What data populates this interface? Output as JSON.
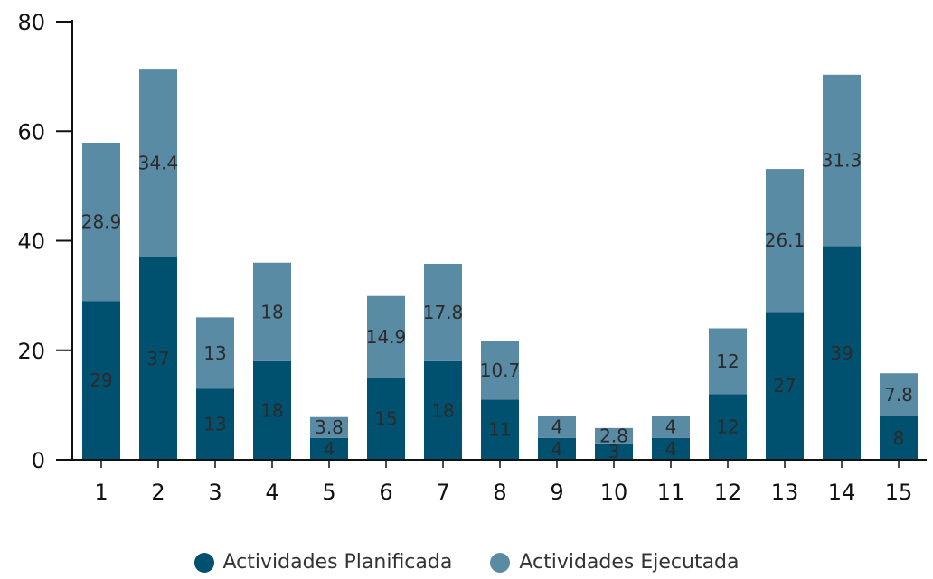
{
  "chart_data": {
    "type": "bar",
    "stacked": true,
    "categories": [
      "1",
      "2",
      "3",
      "4",
      "5",
      "6",
      "7",
      "8",
      "9",
      "10",
      "11",
      "12",
      "13",
      "14",
      "15"
    ],
    "series": [
      {
        "name": "Actividades Planificada",
        "color": "#00506f",
        "values": [
          29,
          37,
          13,
          18,
          4,
          15,
          18,
          11,
          4,
          3,
          4,
          12,
          27,
          39,
          8
        ],
        "labels": [
          "29",
          "37",
          "13",
          "18",
          "4",
          "15",
          "18",
          "11",
          "4",
          "3",
          "4",
          "12",
          "27",
          "39",
          "8"
        ]
      },
      {
        "name": "Actividades Ejecutada",
        "color": "#5a8ba4",
        "values": [
          28.9,
          34.4,
          13,
          18,
          3.8,
          14.9,
          17.8,
          10.7,
          4,
          2.8,
          4,
          12,
          26.1,
          31.3,
          7.8
        ],
        "labels": [
          "28.9",
          "34.4",
          "13",
          "18",
          "3.8",
          "14.9",
          "17.8",
          "10.7",
          "4",
          "2.8",
          "4",
          "12",
          "26.1",
          "31.3",
          "7.8"
        ]
      }
    ],
    "ylim": [
      0,
      80
    ],
    "yticks": [
      "0",
      "20",
      "40",
      "60",
      "80"
    ],
    "legend_position": "bottom",
    "grid": false
  }
}
